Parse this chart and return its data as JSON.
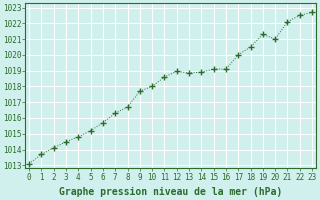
{
  "x": [
    0,
    1,
    2,
    3,
    4,
    5,
    6,
    7,
    8,
    9,
    10,
    11,
    12,
    13,
    14,
    15,
    16,
    17,
    18,
    19,
    20,
    21,
    22,
    23
  ],
  "y": [
    1013.1,
    1013.7,
    1014.1,
    1014.5,
    1014.8,
    1015.2,
    1015.7,
    1016.3,
    1016.7,
    1017.7,
    1018.0,
    1018.6,
    1018.95,
    1018.85,
    1018.9,
    1019.1,
    1019.1,
    1020.0,
    1020.5,
    1021.3,
    1021.0,
    1022.1,
    1022.5,
    1022.7
  ],
  "line_color": "#2d6a2d",
  "marker": "+",
  "marker_size": 4,
  "bg_color": "#cff0ec",
  "plot_bg_color": "#cff0ec",
  "grid_color": "#ffffff",
  "xlabel": "Graphe pression niveau de la mer (hPa)",
  "xlabel_fontsize": 7,
  "ytick_min": 1013,
  "ytick_max": 1023,
  "ytick_step": 1,
  "xtick_labels": [
    "0",
    "1",
    "2",
    "3",
    "4",
    "5",
    "6",
    "7",
    "8",
    "9",
    "10",
    "11",
    "12",
    "13",
    "14",
    "15",
    "16",
    "17",
    "18",
    "19",
    "20",
    "21",
    "22",
    "23"
  ],
  "tick_fontsize": 5.5,
  "ylim": [
    1012.8,
    1023.3
  ],
  "xlim": [
    -0.3,
    23.3
  ]
}
